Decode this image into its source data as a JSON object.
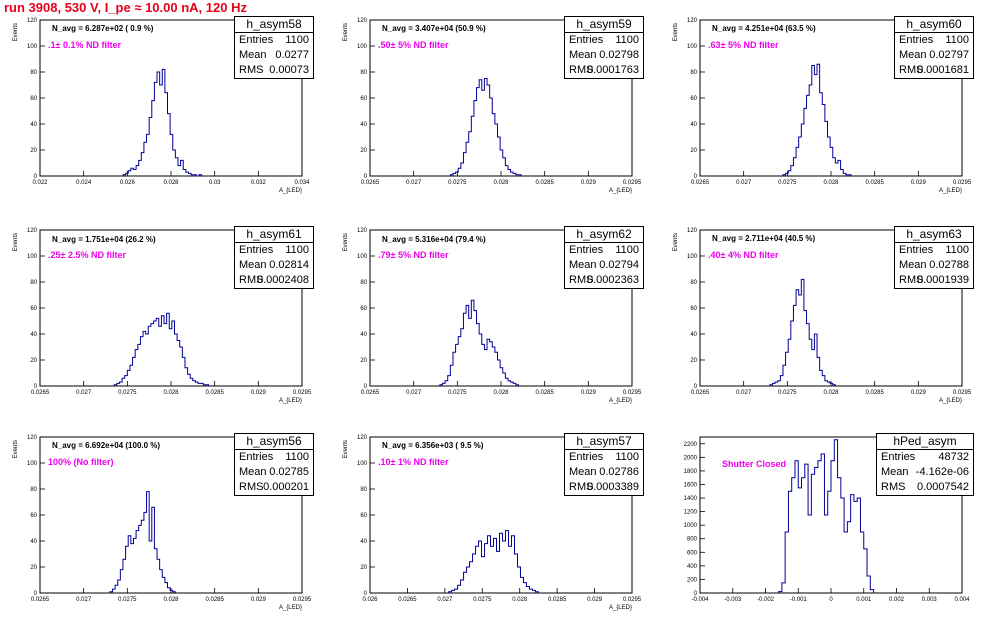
{
  "page": {
    "title": "run 3908,   530 V, I_pe ≈ 10.00 nA, 120 Hz",
    "colors": {
      "title": "#e8001a",
      "hist_line": "#000099",
      "filter_text": "#ee00ee"
    }
  },
  "chart_data": [
    {
      "type": "histogram",
      "id": "h_asym58",
      "n_avg": "N_avg = 6.287e+02 ( 0.9 %)",
      "filter": ".1± 0.1% ND filter",
      "stats": {
        "name": "h_asym58",
        "entries": "1100",
        "mean": "0.0277",
        "rms": "0.00073"
      },
      "ylabel": "Events",
      "xlabel": "A_{LED}",
      "xlim": [
        0.022,
        0.034
      ],
      "ylim": [
        0,
        120
      ],
      "xticks": [
        0.022,
        0.024,
        0.026,
        0.028,
        0.03,
        0.032,
        0.034
      ],
      "xtick_labels": [
        "0.022",
        "0.024",
        "0.026",
        "0.028",
        "0.03",
        "0.032",
        "0.034"
      ],
      "yticks": [
        0,
        20,
        40,
        60,
        80,
        100,
        120
      ],
      "ytick_labels": [
        "0",
        "20",
        "40",
        "60",
        "80",
        "100",
        "120"
      ],
      "hist": {
        "x0": 0.0258,
        "bin": 0.00012,
        "counts": [
          1,
          2,
          4,
          6,
          5,
          8,
          12,
          18,
          26,
          32,
          45,
          58,
          72,
          80,
          70,
          82,
          64,
          48,
          32,
          20,
          14,
          8,
          12,
          5,
          3,
          2,
          1,
          1,
          0,
          1
        ]
      }
    },
    {
      "type": "histogram",
      "id": "h_asym59",
      "n_avg": "N_avg = 3.407e+04 (50.9 %)",
      "filter": ".50± 5% ND filter",
      "stats": {
        "name": "h_asym59",
        "entries": "1100",
        "mean": "0.02798",
        "rms": "0.0001763"
      },
      "ylabel": "Events",
      "xlabel": "A_{LED}",
      "xlim": [
        0.0265,
        0.0295
      ],
      "ylim": [
        0,
        120
      ],
      "xticks": [
        0.0265,
        0.027,
        0.0275,
        0.028,
        0.0285,
        0.029,
        0.0295
      ],
      "xtick_labels": [
        "0.0265",
        "0.027",
        "0.0275",
        "0.028",
        "0.0285",
        "0.029",
        "0.0295"
      ],
      "yticks": [
        0,
        20,
        40,
        60,
        80,
        100,
        120
      ],
      "ytick_labels": [
        "0",
        "20",
        "40",
        "60",
        "80",
        "100",
        "120"
      ],
      "hist": {
        "x0": 0.02742,
        "bin": 3e-05,
        "counts": [
          1,
          2,
          3,
          6,
          10,
          18,
          26,
          34,
          46,
          58,
          68,
          74,
          66,
          75,
          70,
          60,
          48,
          40,
          30,
          20,
          14,
          8,
          5,
          3,
          2,
          1,
          1
        ]
      }
    },
    {
      "type": "histogram",
      "id": "h_asym60",
      "n_avg": "N_avg = 4.251e+04 (63.5 %)",
      "filter": ".63± 5% ND filter",
      "stats": {
        "name": "h_asym60",
        "entries": "1100",
        "mean": "0.02797",
        "rms": "0.0001681"
      },
      "ylabel": "Events",
      "xlabel": "A_{LED}",
      "xlim": [
        0.0265,
        0.0295
      ],
      "ylim": [
        0,
        120
      ],
      "xticks": [
        0.0265,
        0.027,
        0.0275,
        0.028,
        0.0285,
        0.029,
        0.0295
      ],
      "xtick_labels": [
        "0.0265",
        "0.027",
        "0.0275",
        "0.028",
        "0.0285",
        "0.029",
        "0.0295"
      ],
      "yticks": [
        0,
        20,
        40,
        60,
        80,
        100,
        120
      ],
      "ytick_labels": [
        "0",
        "20",
        "40",
        "60",
        "80",
        "100",
        "120"
      ],
      "hist": {
        "x0": 0.02745,
        "bin": 3e-05,
        "counts": [
          1,
          2,
          4,
          8,
          14,
          22,
          30,
          40,
          52,
          62,
          70,
          85,
          78,
          86,
          64,
          55,
          42,
          30,
          22,
          14,
          10,
          12,
          5,
          2,
          1,
          1
        ]
      }
    },
    {
      "type": "histogram",
      "id": "h_asym61",
      "n_avg": "N_avg = 1.751e+04 (26.2 %)",
      "filter": ".25± 2.5% ND filter",
      "stats": {
        "name": "h_asym61",
        "entries": "1100",
        "mean": "0.02814",
        "rms": "0.0002408"
      },
      "ylabel": "Events",
      "xlabel": "A_{LED}",
      "xlim": [
        0.0265,
        0.0295
      ],
      "ylim": [
        0,
        120
      ],
      "xticks": [
        0.0265,
        0.027,
        0.0275,
        0.028,
        0.0285,
        0.029,
        0.0295
      ],
      "xtick_labels": [
        "0.0265",
        "0.027",
        "0.0275",
        "0.028",
        "0.0285",
        "0.029",
        "0.0295"
      ],
      "yticks": [
        0,
        20,
        40,
        60,
        80,
        100,
        120
      ],
      "ytick_labels": [
        "0",
        "20",
        "40",
        "60",
        "80",
        "100",
        "120"
      ],
      "hist": {
        "x0": 0.02735,
        "bin": 3e-05,
        "counts": [
          1,
          2,
          3,
          6,
          8,
          12,
          16,
          22,
          28,
          32,
          38,
          42,
          40,
          46,
          48,
          50,
          52,
          46,
          54,
          48,
          56,
          44,
          50,
          40,
          35,
          30,
          22,
          14,
          9,
          6,
          4,
          3,
          2,
          2,
          1,
          1
        ]
      }
    },
    {
      "type": "histogram",
      "id": "h_asym62",
      "n_avg": "N_avg = 5.316e+04 (79.4 %)",
      "filter": ".79± 5% ND filter",
      "stats": {
        "name": "h_asym62",
        "entries": "1100",
        "mean": "0.02794",
        "rms": "0.0002363"
      },
      "ylabel": "Events",
      "xlabel": "A_{LED}",
      "xlim": [
        0.0265,
        0.0295
      ],
      "ylim": [
        0,
        120
      ],
      "xticks": [
        0.0265,
        0.027,
        0.0275,
        0.028,
        0.0285,
        0.029,
        0.0295
      ],
      "xtick_labels": [
        "0.0265",
        "0.027",
        "0.0275",
        "0.028",
        "0.0285",
        "0.029",
        "0.0295"
      ],
      "yticks": [
        0,
        20,
        40,
        60,
        80,
        100,
        120
      ],
      "ytick_labels": [
        "0",
        "20",
        "40",
        "60",
        "80",
        "100",
        "120"
      ],
      "hist": {
        "x0": 0.0273,
        "bin": 3e-05,
        "counts": [
          1,
          2,
          4,
          8,
          16,
          26,
          32,
          38,
          44,
          56,
          62,
          52,
          66,
          58,
          48,
          40,
          32,
          28,
          36,
          34,
          30,
          26,
          20,
          14,
          10,
          6,
          4,
          3,
          2,
          1
        ]
      }
    },
    {
      "type": "histogram",
      "id": "h_asym63",
      "n_avg": "N_avg = 2.711e+04 (40.5 %)",
      "filter": ".40± 4% ND filter",
      "stats": {
        "name": "h_asym63",
        "entries": "1100",
        "mean": "0.02788",
        "rms": "0.0001939"
      },
      "ylabel": "Events",
      "xlabel": "A_{LED}",
      "xlim": [
        0.0265,
        0.0295
      ],
      "ylim": [
        0,
        120
      ],
      "xticks": [
        0.0265,
        0.027,
        0.0275,
        0.028,
        0.0285,
        0.029,
        0.0295
      ],
      "xtick_labels": [
        "0.0265",
        "0.027",
        "0.0275",
        "0.028",
        "0.0285",
        "0.029",
        "0.0295"
      ],
      "yticks": [
        0,
        20,
        40,
        60,
        80,
        100,
        120
      ],
      "ytick_labels": [
        "0",
        "20",
        "40",
        "60",
        "80",
        "100",
        "120"
      ],
      "hist": {
        "x0": 0.0273,
        "bin": 3e-05,
        "counts": [
          1,
          2,
          3,
          4,
          8,
          16,
          26,
          36,
          50,
          62,
          74,
          70,
          82,
          58,
          48,
          36,
          28,
          40,
          22,
          12,
          8,
          4,
          3,
          2,
          1
        ]
      }
    },
    {
      "type": "histogram",
      "id": "h_asym56",
      "n_avg": "N_avg = 6.692e+04 (100.0 %)",
      "filter": "100% (No filter)",
      "stats": {
        "name": "h_asym56",
        "entries": "1100",
        "mean": "0.02785",
        "rms": "0.000201"
      },
      "ylabel": "Events",
      "xlabel": "A_{LED}",
      "xlim": [
        0.0265,
        0.0295
      ],
      "ylim": [
        0,
        120
      ],
      "xticks": [
        0.0265,
        0.027,
        0.0275,
        0.028,
        0.0285,
        0.029,
        0.0295
      ],
      "xtick_labels": [
        "0.0265",
        "0.027",
        "0.0275",
        "0.028",
        "0.0285",
        "0.029",
        "0.0295"
      ],
      "yticks": [
        0,
        20,
        40,
        60,
        80,
        100,
        120
      ],
      "ytick_labels": [
        "0",
        "20",
        "40",
        "60",
        "80",
        "100",
        "120"
      ],
      "hist": {
        "x0": 0.0273,
        "bin": 3e-05,
        "counts": [
          1,
          3,
          6,
          10,
          18,
          26,
          36,
          44,
          38,
          42,
          48,
          52,
          56,
          62,
          78,
          40,
          66,
          34,
          26,
          18,
          12,
          8,
          4,
          2,
          1
        ]
      }
    },
    {
      "type": "histogram",
      "id": "h_asym57",
      "n_avg": "N_avg = 6.356e+03 ( 9.5 %)",
      "filter": ".10± 1% ND filter",
      "stats": {
        "name": "h_asym57",
        "entries": "1100",
        "mean": "0.02786",
        "rms": "0.0003389"
      },
      "ylabel": "Events",
      "xlabel": "A_{LED}",
      "xlim": [
        0.026,
        0.0295
      ],
      "ylim": [
        0,
        120
      ],
      "xticks": [
        0.026,
        0.0265,
        0.027,
        0.0275,
        0.028,
        0.0285,
        0.029,
        0.0295
      ],
      "xtick_labels": [
        "0.026",
        "0.0265",
        "0.027",
        "0.0275",
        "0.028",
        "0.0285",
        "0.029",
        "0.0295"
      ],
      "yticks": [
        0,
        20,
        40,
        60,
        80,
        100,
        120
      ],
      "ytick_labels": [
        "0",
        "20",
        "40",
        "60",
        "80",
        "100",
        "120"
      ],
      "hist": {
        "x0": 0.02705,
        "bin": 4e-05,
        "counts": [
          1,
          2,
          3,
          6,
          10,
          16,
          20,
          24,
          30,
          36,
          40,
          28,
          38,
          44,
          36,
          42,
          32,
          46,
          40,
          48,
          36,
          44,
          30,
          20,
          12,
          8,
          5,
          3,
          2,
          1
        ]
      }
    },
    {
      "type": "histogram",
      "id": "hPed_asym",
      "n_avg": "",
      "filter": "Shutter Closed",
      "stats": {
        "name": "hPed_asym",
        "entries": "48732",
        "mean": "-4.162e-06",
        "rms": "0.0007542"
      },
      "ylabel": "",
      "xlabel": "",
      "xlim": [
        -0.004,
        0.004
      ],
      "ylim": [
        0,
        2300
      ],
      "xticks": [
        -0.004,
        -0.003,
        -0.002,
        -0.001,
        0,
        0.001,
        0.002,
        0.003,
        0.004
      ],
      "xtick_labels": [
        "-0.004",
        "-0.003",
        "-0.002",
        "-0.001",
        "0",
        "0.001",
        "0.002",
        "0.003",
        "0.004"
      ],
      "yticks": [
        0,
        200,
        400,
        600,
        800,
        1000,
        1200,
        1400,
        1600,
        1800,
        2000,
        2200
      ],
      "ytick_labels": [
        "0",
        "200",
        "400",
        "600",
        "800",
        "1000",
        "1200",
        "1400",
        "1600",
        "1800",
        "2000",
        "2200"
      ],
      "hist": {
        "x0": -0.0016,
        "bin": 0.0001,
        "counts": [
          20,
          150,
          900,
          1500,
          1700,
          1950,
          1550,
          1700,
          1900,
          1150,
          1750,
          1850,
          1950,
          2050,
          1150,
          1500,
          1950,
          2260,
          1700,
          1400,
          900,
          1050,
          1450,
          1350,
          1400,
          900,
          650,
          250,
          50
        ]
      }
    }
  ]
}
